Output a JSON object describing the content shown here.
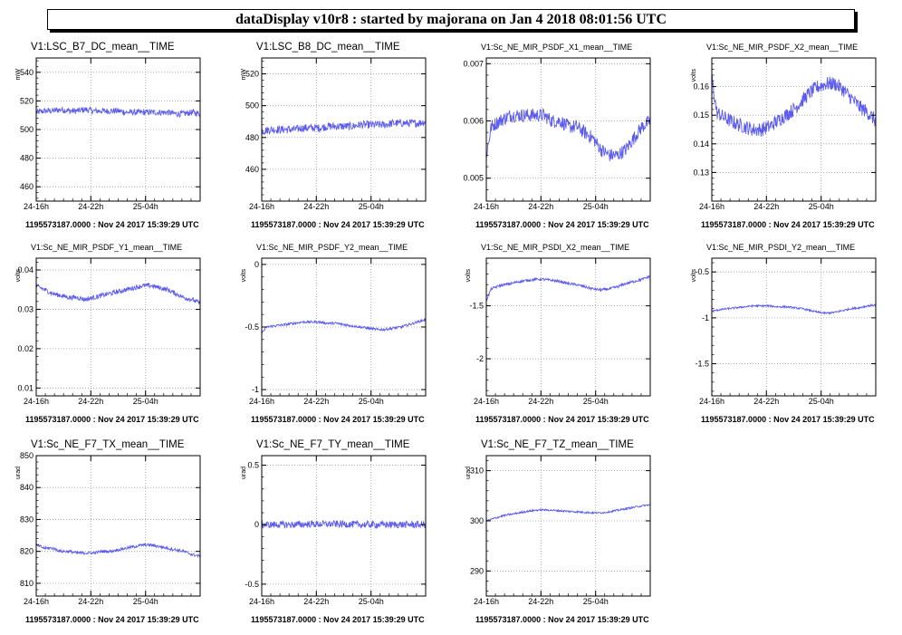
{
  "header": {
    "title": "dataDisplay v10r8 : started by majorana on Jan  4 2018 08:01:56 UTC"
  },
  "colors": {
    "line": "#5b5bf0",
    "grid": "#9a9a9a",
    "axis": "#000000"
  },
  "chart_data": [
    {
      "type": "line",
      "title": "V1:LSC_B7_DC_mean__TIME",
      "ylabel": "mW",
      "ylim": [
        450,
        550
      ],
      "yticks": [
        {
          "v": 460,
          "l": "460"
        },
        {
          "v": 480,
          "l": "480"
        },
        {
          "v": 500,
          "l": "500"
        },
        {
          "v": 520,
          "l": "520"
        },
        {
          "v": 540,
          "l": "540"
        }
      ],
      "xticks": [
        "24-16h",
        "24-22h",
        "25-04h"
      ],
      "xtick_pos": [
        0,
        0.333,
        0.667
      ],
      "grid": true,
      "series": [
        {
          "x": [
            0,
            0.05,
            0.1,
            0.15,
            0.2,
            0.25,
            0.3,
            0.35,
            0.4,
            0.45,
            0.5,
            0.55,
            0.6,
            0.65,
            0.7,
            0.75,
            0.8,
            0.85,
            0.9,
            0.95,
            1
          ],
          "y": [
            512,
            513,
            513,
            514,
            513,
            513,
            514,
            513,
            513,
            513,
            513,
            512,
            512,
            512,
            512,
            512,
            512,
            511,
            511,
            512,
            511
          ],
          "noise": 2.2
        }
      ],
      "footer": "1195573187.0000 : Nov 24 2017 15:39:29 UTC"
    },
    {
      "type": "line",
      "title": "V1:LSC_B8_DC_mean__TIME",
      "ylabel": "mW",
      "ylim": [
        440,
        530
      ],
      "yticks": [
        {
          "v": 460,
          "l": "460"
        },
        {
          "v": 480,
          "l": "480"
        },
        {
          "v": 500,
          "l": "500"
        },
        {
          "v": 520,
          "l": "520"
        }
      ],
      "xticks": [
        "24-16h",
        "24-22h",
        "25-04h"
      ],
      "xtick_pos": [
        0,
        0.333,
        0.667
      ],
      "grid": true,
      "series": [
        {
          "x": [
            0,
            0.05,
            0.1,
            0.15,
            0.2,
            0.25,
            0.3,
            0.35,
            0.4,
            0.45,
            0.5,
            0.55,
            0.6,
            0.65,
            0.7,
            0.75,
            0.8,
            0.85,
            0.9,
            0.95,
            1
          ],
          "y": [
            484,
            485,
            485,
            485,
            485,
            486,
            486,
            486,
            487,
            487,
            487,
            487,
            488,
            488,
            488,
            488,
            489,
            489,
            489,
            489,
            490
          ],
          "noise": 2.5
        }
      ],
      "footer": "1195573187.0000 : Nov 24 2017 15:39:29 UTC"
    },
    {
      "type": "line",
      "title": "V1:Sc_NE_MIR_PSDF_X1_mean__TIME",
      "ylabel": "",
      "ylim": [
        0.0046,
        0.0071
      ],
      "yticks": [
        {
          "v": 0.005,
          "l": "0.005"
        },
        {
          "v": 0.006,
          "l": "0.006"
        },
        {
          "v": 0.007,
          "l": "0.007"
        }
      ],
      "xticks": [
        "24-16h",
        "24-22h",
        "25-04h"
      ],
      "xtick_pos": [
        0,
        0.333,
        0.667
      ],
      "grid": true,
      "series": [
        {
          "x": [
            0,
            0.03,
            0.08,
            0.15,
            0.2,
            0.25,
            0.3,
            0.35,
            0.4,
            0.45,
            0.5,
            0.55,
            0.6,
            0.65,
            0.7,
            0.75,
            0.8,
            0.85,
            0.9,
            0.95,
            1
          ],
          "y": [
            0.0054,
            0.0059,
            0.006,
            0.0061,
            0.0061,
            0.0061,
            0.0061,
            0.0061,
            0.006,
            0.006,
            0.0059,
            0.0059,
            0.0058,
            0.0057,
            0.0055,
            0.0054,
            0.0054,
            0.0055,
            0.0057,
            0.0059,
            0.006
          ],
          "noise": 0.00012
        }
      ],
      "footer": "1195573187.0000 : Nov 24 2017 15:39:29 UTC"
    },
    {
      "type": "line",
      "title": "V1:Sc_NE_MIR_PSDF_X2_mean__TIME",
      "ylabel": "volts",
      "ylim": [
        0.12,
        0.17
      ],
      "yticks": [
        {
          "v": 0.13,
          "l": "0.13"
        },
        {
          "v": 0.14,
          "l": "0.14"
        },
        {
          "v": 0.15,
          "l": "0.15"
        },
        {
          "v": 0.16,
          "l": "0.16"
        }
      ],
      "xticks": [
        "24-16h",
        "24-22h",
        "25-04h"
      ],
      "xtick_pos": [
        0,
        0.333,
        0.667
      ],
      "grid": true,
      "series": [
        {
          "x": [
            0,
            0.03,
            0.08,
            0.15,
            0.2,
            0.25,
            0.3,
            0.35,
            0.4,
            0.45,
            0.5,
            0.55,
            0.6,
            0.65,
            0.7,
            0.75,
            0.8,
            0.85,
            0.9,
            0.95,
            1
          ],
          "y": [
            0.163,
            0.151,
            0.149,
            0.147,
            0.146,
            0.145,
            0.145,
            0.146,
            0.148,
            0.15,
            0.152,
            0.155,
            0.158,
            0.16,
            0.161,
            0.161,
            0.159,
            0.156,
            0.153,
            0.151,
            0.148
          ],
          "noise": 0.0025
        }
      ],
      "footer": "1195573187.0000 : Nov 24 2017 15:39:29 UTC"
    },
    {
      "type": "line",
      "title": "V1:Sc_NE_MIR_PSDF_Y1_mean__TIME",
      "ylabel": "volts",
      "ylim": [
        0.008,
        0.043
      ],
      "yticks": [
        {
          "v": 0.01,
          "l": "0.01"
        },
        {
          "v": 0.02,
          "l": "0.02"
        },
        {
          "v": 0.03,
          "l": "0.03"
        },
        {
          "v": 0.04,
          "l": "0.04"
        }
      ],
      "xticks": [
        "24-16h",
        "24-22h",
        "25-04h"
      ],
      "xtick_pos": [
        0,
        0.333,
        0.667
      ],
      "grid": true,
      "series": [
        {
          "x": [
            0,
            0.05,
            0.1,
            0.15,
            0.2,
            0.25,
            0.3,
            0.35,
            0.4,
            0.45,
            0.5,
            0.55,
            0.6,
            0.65,
            0.7,
            0.75,
            0.8,
            0.85,
            0.9,
            0.95,
            1
          ],
          "y": [
            0.036,
            0.035,
            0.034,
            0.0335,
            0.033,
            0.033,
            0.0325,
            0.033,
            0.0335,
            0.034,
            0.0345,
            0.035,
            0.0355,
            0.036,
            0.036,
            0.0355,
            0.035,
            0.034,
            0.033,
            0.0325,
            0.0315
          ],
          "noise": 0.0006
        }
      ],
      "footer": "1195573187.0000 : Nov 24 2017 15:39:29 UTC"
    },
    {
      "type": "line",
      "title": "V1:Sc_NE_MIR_PSDF_Y2_mean__TIME",
      "ylabel": "volts",
      "ylim": [
        -1.05,
        0.05
      ],
      "yticks": [
        {
          "v": -1,
          "l": "-1"
        },
        {
          "v": -0.5,
          "l": "-0.5"
        },
        {
          "v": 0,
          "l": "0"
        }
      ],
      "xticks": [
        "24-16h",
        "24-22h",
        "25-04h"
      ],
      "xtick_pos": [
        0,
        0.333,
        0.667
      ],
      "grid": true,
      "series": [
        {
          "x": [
            0,
            0.03,
            0.08,
            0.15,
            0.2,
            0.25,
            0.3,
            0.35,
            0.4,
            0.45,
            0.5,
            0.55,
            0.6,
            0.65,
            0.7,
            0.75,
            0.8,
            0.85,
            0.9,
            0.95,
            1
          ],
          "y": [
            -0.55,
            -0.5,
            -0.49,
            -0.48,
            -0.47,
            -0.46,
            -0.46,
            -0.46,
            -0.47,
            -0.47,
            -0.48,
            -0.49,
            -0.5,
            -0.51,
            -0.52,
            -0.52,
            -0.51,
            -0.5,
            -0.48,
            -0.46,
            -0.44
          ],
          "noise": 0.01
        }
      ],
      "footer": "1195573187.0000 : Nov 24 2017 15:39:29 UTC"
    },
    {
      "type": "line",
      "title": "V1:Sc_NE_MIR_PSDI_X2_mean__TIME",
      "ylabel": "volts",
      "ylim": [
        -2.35,
        -1.05
      ],
      "yticks": [
        {
          "v": -2,
          "l": "-2"
        },
        {
          "v": -1.5,
          "l": "-1.5"
        }
      ],
      "xticks": [
        "24-16h",
        "24-22h",
        "25-04h"
      ],
      "xtick_pos": [
        0,
        0.333,
        0.667
      ],
      "grid": true,
      "series": [
        {
          "x": [
            0,
            0.03,
            0.08,
            0.15,
            0.2,
            0.25,
            0.3,
            0.35,
            0.4,
            0.45,
            0.5,
            0.55,
            0.6,
            0.65,
            0.7,
            0.75,
            0.8,
            0.85,
            0.9,
            0.95,
            1
          ],
          "y": [
            -1.45,
            -1.34,
            -1.31,
            -1.29,
            -1.27,
            -1.26,
            -1.25,
            -1.25,
            -1.26,
            -1.27,
            -1.29,
            -1.3,
            -1.32,
            -1.34,
            -1.35,
            -1.34,
            -1.32,
            -1.29,
            -1.27,
            -1.25,
            -1.22
          ],
          "noise": 0.012
        }
      ],
      "footer": "1195573187.0000 : Nov 24 2017 15:39:29 UTC"
    },
    {
      "type": "line",
      "title": "V1:Sc_NE_MIR_PSDI_Y2_mean__TIME",
      "ylabel": "volts",
      "ylim": [
        -1.85,
        -0.35
      ],
      "yticks": [
        {
          "v": -1.5,
          "l": "-1.5"
        },
        {
          "v": -1,
          "l": "-1"
        },
        {
          "v": -0.5,
          "l": "-0.5"
        }
      ],
      "xticks": [
        "24-16h",
        "24-22h",
        "25-04h"
      ],
      "xtick_pos": [
        0,
        0.333,
        0.667
      ],
      "grid": true,
      "series": [
        {
          "x": [
            0,
            0.05,
            0.1,
            0.15,
            0.2,
            0.25,
            0.3,
            0.35,
            0.4,
            0.45,
            0.5,
            0.55,
            0.6,
            0.65,
            0.7,
            0.75,
            0.8,
            0.85,
            0.9,
            0.95,
            1
          ],
          "y": [
            -0.93,
            -0.91,
            -0.9,
            -0.89,
            -0.88,
            -0.87,
            -0.87,
            -0.87,
            -0.88,
            -0.88,
            -0.89,
            -0.9,
            -0.92,
            -0.94,
            -0.95,
            -0.94,
            -0.92,
            -0.9,
            -0.89,
            -0.87,
            -0.86
          ],
          "noise": 0.01
        }
      ],
      "footer": "1195573187.0000 : Nov 24 2017 15:39:29 UTC"
    },
    {
      "type": "line",
      "title": "V1:Sc_NE_F7_TX_mean__TIME",
      "ylabel": "urad",
      "ylim": [
        806,
        850
      ],
      "yticks": [
        {
          "v": 810,
          "l": "810"
        },
        {
          "v": 820,
          "l": "820"
        },
        {
          "v": 830,
          "l": "830"
        },
        {
          "v": 840,
          "l": "840"
        },
        {
          "v": 850,
          "l": "850"
        }
      ],
      "xticks": [
        "24-16h",
        "24-22h",
        "25-04h"
      ],
      "xtick_pos": [
        0,
        0.333,
        0.667
      ],
      "grid": true,
      "series": [
        {
          "x": [
            0,
            0.05,
            0.1,
            0.15,
            0.2,
            0.25,
            0.3,
            0.35,
            0.4,
            0.45,
            0.5,
            0.55,
            0.6,
            0.65,
            0.7,
            0.75,
            0.8,
            0.85,
            0.9,
            0.95,
            1
          ],
          "y": [
            822,
            821,
            821,
            820,
            820,
            819.5,
            819.5,
            819.5,
            820,
            820,
            820.5,
            821,
            821.5,
            822,
            822,
            821.5,
            821,
            820.5,
            820,
            819,
            818.5
          ],
          "noise": 0.45
        }
      ],
      "footer": "1195573187.0000 : Nov 24 2017 15:39:29 UTC"
    },
    {
      "type": "line",
      "title": "V1:Sc_NE_F7_TY_mean__TIME",
      "ylabel": "urad",
      "ylim": [
        -0.6,
        0.58
      ],
      "yticks": [
        {
          "v": -0.5,
          "l": "-0.5"
        },
        {
          "v": 0,
          "l": "0"
        },
        {
          "v": 0.5,
          "l": "0.5"
        }
      ],
      "xticks": [
        "24-16h",
        "24-22h",
        "25-04h"
      ],
      "xtick_pos": [
        0,
        0.333,
        0.667
      ],
      "grid": true,
      "series": [
        {
          "x": [
            0,
            0.1,
            0.2,
            0.3,
            0.4,
            0.5,
            0.6,
            0.7,
            0.8,
            0.9,
            1
          ],
          "y": [
            0,
            0,
            0,
            0.005,
            0.005,
            0.005,
            0,
            0,
            0,
            0,
            0
          ],
          "noise": 0.03
        }
      ],
      "footer": "1195573187.0000 : Nov 24 2017 15:39:29 UTC"
    },
    {
      "type": "line",
      "title": "V1:Sc_NE_F7_TZ_mean__TIME",
      "ylabel": "urad",
      "ylim": [
        285,
        313
      ],
      "yticks": [
        {
          "v": 290,
          "l": "290"
        },
        {
          "v": 300,
          "l": "300"
        },
        {
          "v": 310,
          "l": "310"
        }
      ],
      "xticks": [
        "24-16h",
        "24-22h",
        "25-04h"
      ],
      "xtick_pos": [
        0,
        0.333,
        0.667
      ],
      "grid": true,
      "series": [
        {
          "x": [
            0,
            0.05,
            0.1,
            0.15,
            0.2,
            0.25,
            0.3,
            0.35,
            0.4,
            0.45,
            0.5,
            0.55,
            0.6,
            0.65,
            0.7,
            0.75,
            0.8,
            0.85,
            0.9,
            0.95,
            1
          ],
          "y": [
            300,
            300.5,
            301,
            301.3,
            301.6,
            301.9,
            302.1,
            302.2,
            302.1,
            302,
            301.9,
            301.8,
            301.7,
            301.6,
            301.6,
            301.8,
            302.1,
            302.4,
            302.7,
            303,
            303.2
          ],
          "noise": 0.18
        }
      ],
      "footer": "1195573187.0000 : Nov 24 2017 15:39:29 UTC"
    }
  ]
}
